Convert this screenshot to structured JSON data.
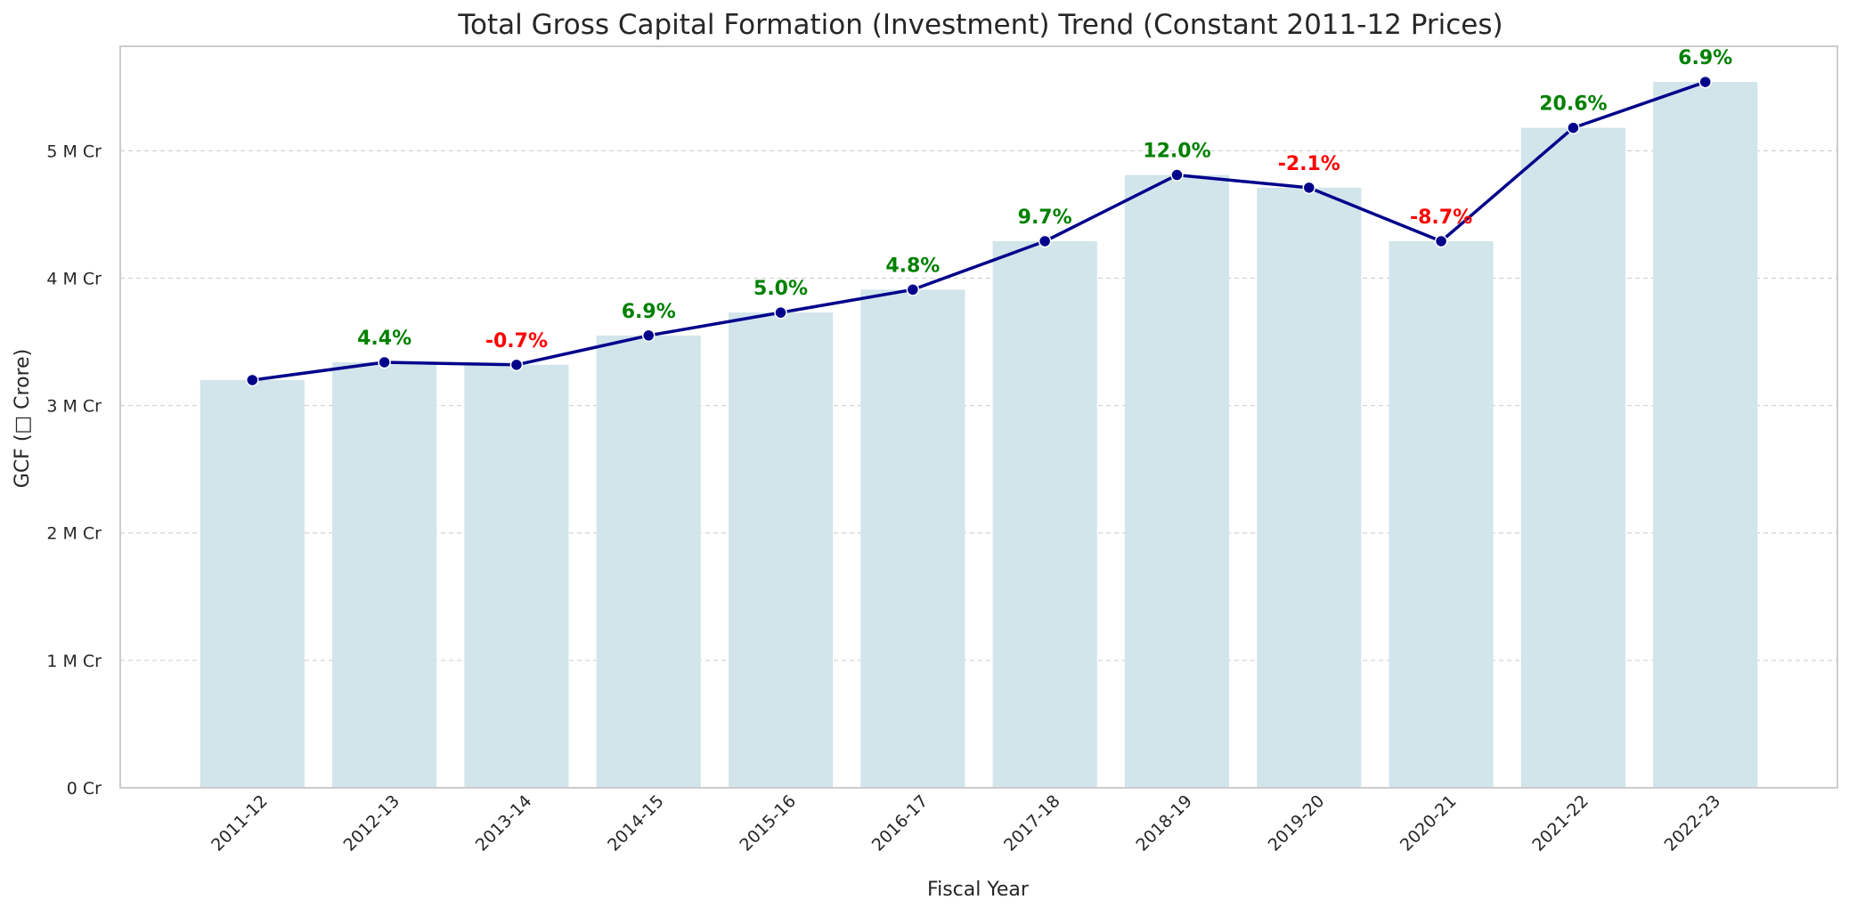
{
  "chart_data": {
    "type": "bar",
    "title": "Total Gross Capital Formation (Investment) Trend (Constant 2011-12 Prices)",
    "xlabel": "Fiscal Year",
    "ylabel": "GCF (□ Crore)",
    "categories": [
      "2011-12",
      "2012-13",
      "2013-14",
      "2014-15",
      "2015-16",
      "2016-17",
      "2017-18",
      "2018-19",
      "2019-20",
      "2020-21",
      "2021-22",
      "2022-23"
    ],
    "values": [
      3.2,
      3.34,
      3.32,
      3.55,
      3.73,
      3.91,
      4.29,
      4.81,
      4.71,
      4.29,
      5.18,
      5.54
    ],
    "growth_labels": [
      "",
      "4.4%",
      "-0.7%",
      "6.9%",
      "5.0%",
      "4.8%",
      "9.7%",
      "12.0%",
      "-2.1%",
      "-8.7%",
      "20.6%",
      "6.9%"
    ],
    "yticks": [
      0,
      1,
      2,
      3,
      4,
      5
    ],
    "ytick_labels": [
      "0  Cr",
      "1 M Cr",
      "2 M Cr",
      "3 M Cr",
      "4 M Cr",
      "5 M Cr"
    ],
    "ylim": [
      0,
      5.82
    ],
    "grid": true,
    "colors": {
      "bar": "#d1e5eb",
      "line": "#00008b",
      "marker": "#00008b",
      "positive": "#008000",
      "negative": "#ff0000",
      "grid": "#cccccc",
      "axes": "#cccccc"
    }
  }
}
